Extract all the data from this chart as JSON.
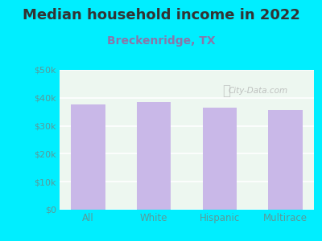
{
  "title": "Median household income in 2022",
  "subtitle": "Breckenridge, TX",
  "categories": [
    "All",
    "White",
    "Hispanic",
    "Multirace"
  ],
  "values": [
    37500,
    38500,
    36500,
    35500
  ],
  "bar_color": "#c9b8e8",
  "background_outer": "#00eeff",
  "background_inner_top": "#e8f5ee",
  "background_inner_bottom": "#f0faf4",
  "title_fontsize": 13,
  "subtitle_fontsize": 10,
  "title_color": "#333333",
  "subtitle_color": "#8877aa",
  "tick_label_color": "#5a9a9a",
  "ytick_labels": [
    "$0",
    "$10k",
    "$20k",
    "$30k",
    "$40k",
    "$50k"
  ],
  "ytick_values": [
    0,
    10000,
    20000,
    30000,
    40000,
    50000
  ],
  "ylim": [
    0,
    50000
  ],
  "watermark": "City-Data.com"
}
